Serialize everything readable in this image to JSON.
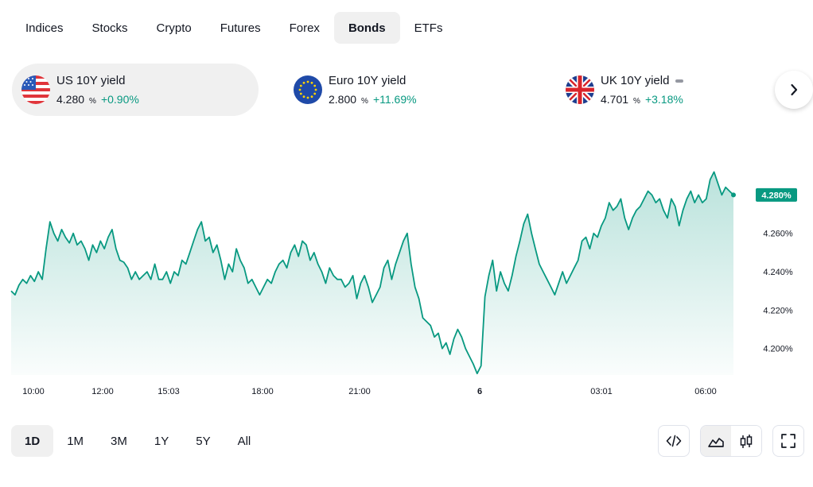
{
  "tabs": [
    {
      "label": "Indices",
      "active": false
    },
    {
      "label": "Stocks",
      "active": false
    },
    {
      "label": "Crypto",
      "active": false
    },
    {
      "label": "Futures",
      "active": false
    },
    {
      "label": "Forex",
      "active": false
    },
    {
      "label": "Bonds",
      "active": true
    },
    {
      "label": "ETFs",
      "active": false
    }
  ],
  "tickers": [
    {
      "name": "US 10Y yield",
      "value": "4.280",
      "unit": "%",
      "change": "+0.90%",
      "flag": "us-flag-icon",
      "active": true
    },
    {
      "name": "Euro 10Y yield",
      "value": "2.800",
      "unit": "%",
      "change": "+11.69%",
      "flag": "eu-flag-icon",
      "active": false
    },
    {
      "name": "UK 10Y yield",
      "value": "4.701",
      "unit": "%",
      "change": "+3.18%",
      "flag": "uk-flag-icon",
      "active": false,
      "status_icon": "market-closed-dash-icon"
    }
  ],
  "next_icon": "chevron-right-icon",
  "chart_data": {
    "type": "area",
    "series_name": "US 10Y yield",
    "ylim": [
      4.185,
      4.305
    ],
    "y_ticks": [
      "4.200%",
      "4.220%",
      "4.240%",
      "4.260%"
    ],
    "y_tick_values": [
      4.2,
      4.22,
      4.24,
      4.26
    ],
    "x_ticks": [
      "10:00",
      "12:00",
      "15:03",
      "18:00",
      "21:00",
      "6",
      "03:01",
      "06:00"
    ],
    "last_value_label": "4.280%",
    "line_color": "#089981",
    "fill_color": "#089981",
    "values": [
      4.23,
      4.228,
      4.233,
      4.236,
      4.234,
      4.238,
      4.235,
      4.24,
      4.236,
      4.252,
      4.266,
      4.26,
      4.256,
      4.262,
      4.258,
      4.255,
      4.26,
      4.254,
      4.256,
      4.252,
      4.246,
      4.254,
      4.25,
      4.256,
      4.252,
      4.258,
      4.262,
      4.252,
      4.246,
      4.245,
      4.242,
      4.236,
      4.24,
      4.236,
      4.238,
      4.24,
      4.236,
      4.244,
      4.236,
      4.236,
      4.24,
      4.234,
      4.24,
      4.238,
      4.246,
      4.244,
      4.25,
      4.256,
      4.262,
      4.266,
      4.256,
      4.258,
      4.25,
      4.254,
      4.246,
      4.236,
      4.244,
      4.24,
      4.252,
      4.246,
      4.242,
      4.234,
      4.236,
      4.232,
      4.228,
      4.232,
      4.236,
      4.234,
      4.24,
      4.244,
      4.246,
      4.242,
      4.25,
      4.254,
      4.248,
      4.256,
      4.254,
      4.246,
      4.25,
      4.244,
      4.24,
      4.234,
      4.242,
      4.238,
      4.236,
      4.236,
      4.232,
      4.234,
      4.238,
      4.226,
      4.234,
      4.238,
      4.232,
      4.224,
      4.228,
      4.232,
      4.242,
      4.246,
      4.236,
      4.244,
      4.25,
      4.256,
      4.26,
      4.244,
      4.232,
      4.226,
      4.216,
      4.214,
      4.212,
      4.206,
      4.208,
      4.2,
      4.203,
      4.197,
      4.205,
      4.21,
      4.206,
      4.2,
      4.196,
      4.192,
      4.187,
      4.191,
      4.227,
      4.238,
      4.246,
      4.23,
      4.24,
      4.234,
      4.23,
      4.238,
      4.248,
      4.256,
      4.265,
      4.27,
      4.26,
      4.252,
      4.244,
      4.24,
      4.236,
      4.232,
      4.228,
      4.234,
      4.24,
      4.234,
      4.238,
      4.242,
      4.246,
      4.256,
      4.258,
      4.252,
      4.26,
      4.258,
      4.264,
      4.268,
      4.276,
      4.272,
      4.274,
      4.278,
      4.268,
      4.262,
      4.268,
      4.272,
      4.274,
      4.278,
      4.282,
      4.28,
      4.276,
      4.278,
      4.272,
      4.268,
      4.278,
      4.274,
      4.264,
      4.272,
      4.278,
      4.282,
      4.276,
      4.28,
      4.276,
      4.278,
      4.288,
      4.292,
      4.286,
      4.28,
      4.284,
      4.282,
      4.28
    ]
  },
  "ranges": [
    {
      "label": "1D",
      "active": true
    },
    {
      "label": "1M",
      "active": false
    },
    {
      "label": "3M",
      "active": false
    },
    {
      "label": "1Y",
      "active": false
    },
    {
      "label": "5Y",
      "active": false
    },
    {
      "label": "All",
      "active": false
    }
  ],
  "tools": {
    "embed_icon": "code-brackets-icon",
    "area_icon": "area-chart-icon",
    "candles_icon": "candlestick-icon",
    "fullscreen_icon": "fullscreen-icon"
  }
}
